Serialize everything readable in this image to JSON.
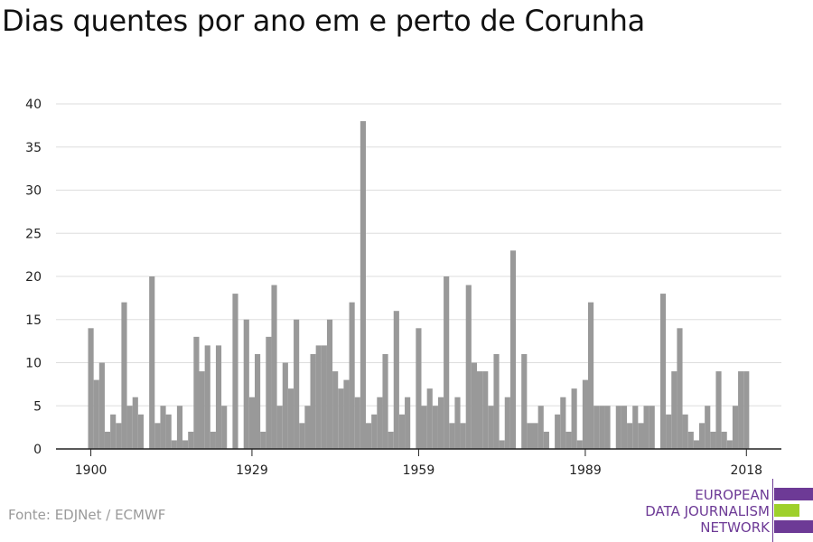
{
  "chart_data": {
    "type": "bar",
    "title": "Dias quentes por ano em e perto de Corunha",
    "x_start": 1900,
    "values": [
      14,
      8,
      10,
      2,
      4,
      3,
      17,
      5,
      6,
      4,
      0,
      20,
      3,
      5,
      4,
      1,
      5,
      1,
      2,
      13,
      9,
      12,
      2,
      12,
      5,
      0,
      18,
      0,
      15,
      6,
      11,
      2,
      13,
      19,
      5,
      10,
      7,
      15,
      3,
      5,
      11,
      12,
      12,
      15,
      9,
      7,
      8,
      17,
      6,
      38,
      3,
      4,
      6,
      11,
      2,
      16,
      4,
      6,
      0,
      14,
      5,
      7,
      5,
      6,
      20,
      3,
      6,
      3,
      19,
      10,
      9,
      9,
      5,
      11,
      1,
      6,
      23,
      0,
      11,
      3,
      3,
      5,
      2,
      0,
      4,
      6,
      2,
      7,
      1,
      8,
      17,
      5,
      5,
      5,
      0,
      5,
      5,
      3,
      5,
      3,
      5,
      5,
      0,
      18,
      4,
      9,
      14,
      4,
      2,
      1,
      3,
      5,
      2,
      9,
      2,
      1,
      5,
      9,
      9
    ],
    "xticks": [
      1900,
      1929,
      1959,
      1989,
      2018
    ],
    "yticks": [
      0,
      5,
      10,
      15,
      20,
      25,
      30,
      35,
      40
    ],
    "ylim": [
      0,
      40
    ],
    "bar_color": "#999999",
    "grid": true
  },
  "source": "Fonte: EDJNet / ECMWF",
  "logo": {
    "lines": [
      "EUROPEAN",
      "DATA JOURNALISM",
      "NETWORK"
    ],
    "colors": [
      "#6d3a96",
      "#9ed02b",
      "#6d3a96"
    ]
  }
}
